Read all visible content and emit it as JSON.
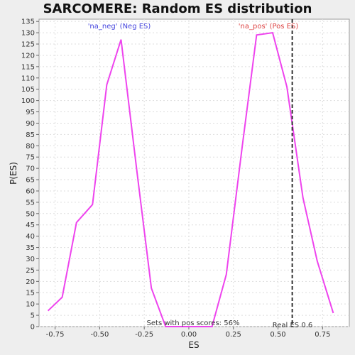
{
  "chart_data": {
    "type": "line",
    "title": "SARCOMERE: Random ES distribution",
    "xlabel": "ES",
    "ylabel": "P(ES)",
    "xlim": [
      -0.84,
      0.9
    ],
    "ylim": [
      0,
      136
    ],
    "x_ticks": [
      {
        "value": -0.75,
        "label": "-0.75"
      },
      {
        "value": -0.5,
        "label": "-0.50"
      },
      {
        "value": -0.25,
        "label": "-0.25"
      },
      {
        "value": 0,
        "label": "0.00"
      },
      {
        "value": 0.25,
        "label": "0.25"
      },
      {
        "value": 0.5,
        "label": "0.50"
      },
      {
        "value": 0.75,
        "label": "0.75"
      }
    ],
    "y_ticks": [
      0,
      5,
      10,
      15,
      20,
      25,
      30,
      35,
      40,
      45,
      50,
      55,
      60,
      65,
      70,
      75,
      80,
      85,
      90,
      95,
      100,
      105,
      110,
      115,
      120,
      125,
      130,
      135
    ],
    "grid": true,
    "series": [
      {
        "name": "'na_neg' (Neg ES)",
        "color": "#ee44ee",
        "x": [
          -0.79,
          -0.71,
          -0.63,
          -0.54,
          -0.46,
          -0.38,
          -0.29,
          -0.21,
          -0.13,
          -0.04,
          0.04,
          0.13,
          0.21,
          0.3,
          0.38,
          0.47,
          0.55,
          0.64,
          0.72,
          0.81
        ],
        "y": [
          7,
          13,
          46,
          54,
          107,
          127,
          68,
          17,
          0,
          0,
          0,
          0,
          23,
          80,
          129,
          130,
          106,
          57,
          29,
          6
        ]
      }
    ],
    "legend": [
      {
        "label": "'na_neg' (Neg ES)",
        "color": "#4444dd",
        "position": "upper-left"
      },
      {
        "label": "'na_pos' (Pos ES)",
        "color": "#dd4444",
        "position": "upper-right"
      }
    ],
    "real_es": {
      "value": 0.58,
      "label": "Real ES 0.6"
    },
    "annotation": "Sets with pos scores: 56%"
  },
  "colors": {
    "background": "#eeeeee",
    "plot_background": "#ffffff",
    "curve": "#ee44ee",
    "grid": "#dddddd",
    "real_es_line": "#333333"
  }
}
